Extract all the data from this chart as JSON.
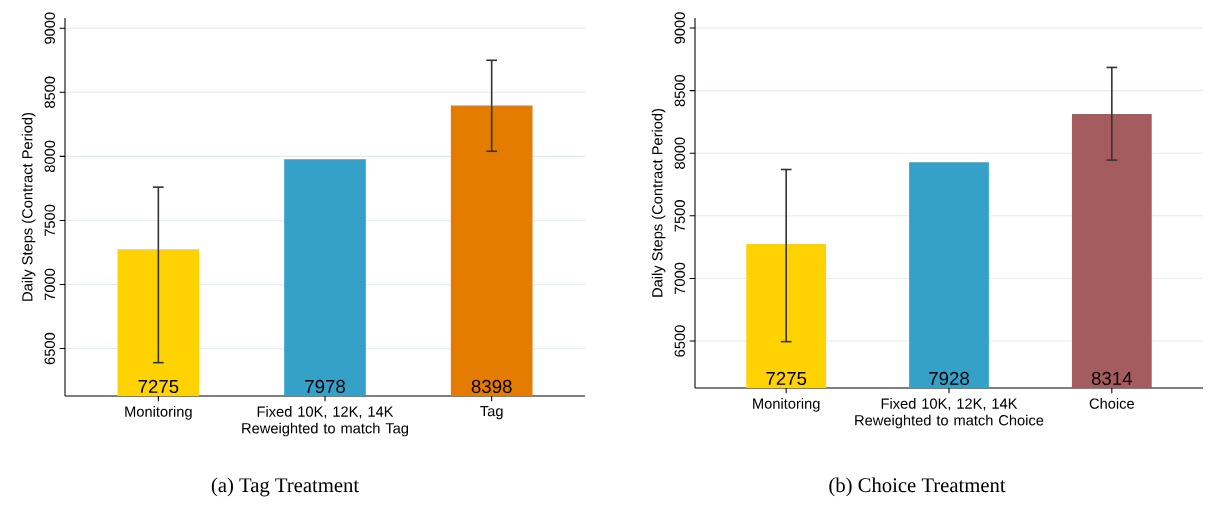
{
  "chart_data": [
    {
      "type": "bar",
      "title": "(a) Tag Treatment",
      "ylabel": "Daily Steps (Contract Period)",
      "categories": [
        "Monitoring",
        "Fixed 10K, 12K, 14K Reweighted to match Tag",
        "Tag"
      ],
      "values": [
        7275,
        7978,
        8398
      ],
      "data_labels": true,
      "colors": [
        "#ffd200",
        "#35a1c8",
        "#e37c00"
      ],
      "errors": [
        [
          6390,
          7760
        ],
        null,
        [
          8040,
          8750
        ]
      ],
      "ylim": [
        6130,
        9080
      ],
      "yticks": [
        6500,
        7000,
        7500,
        8000,
        8500,
        9000
      ],
      "grid": "y"
    },
    {
      "type": "bar",
      "title": "(b) Choice Treatment",
      "ylabel": "Daily Steps (Contract Period)",
      "categories": [
        "Monitoring",
        "Fixed 10K, 12K, 14K Reweighted to match Choice",
        "Choice"
      ],
      "values": [
        7275,
        7928,
        8314
      ],
      "data_labels": true,
      "colors": [
        "#ffd200",
        "#35a1c8",
        "#a55c5f"
      ],
      "errors": [
        [
          6495,
          7870
        ],
        null,
        [
          7945,
          8685
        ]
      ],
      "ylim": [
        6125,
        9080
      ],
      "yticks": [
        6500,
        7000,
        7500,
        8000,
        8500,
        9000
      ],
      "grid": "y"
    }
  ]
}
